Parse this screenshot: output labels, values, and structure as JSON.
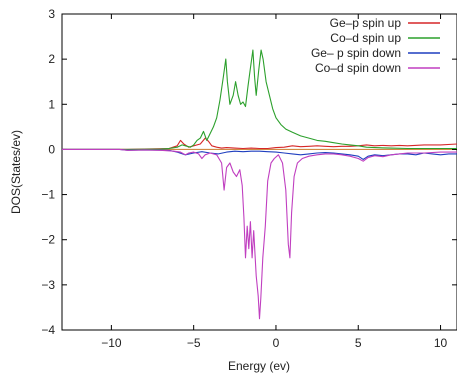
{
  "chart_data": {
    "type": "line",
    "title": "",
    "xlabel": "Energy (ev)",
    "ylabel": "DOS(States/ev)",
    "xlim": [
      -13,
      11
    ],
    "ylim": [
      -4,
      3
    ],
    "xticks": [
      -10,
      -5,
      0,
      5,
      10
    ],
    "yticks": [
      -4,
      -3,
      -2,
      -1,
      0,
      1,
      2,
      3
    ],
    "legend_position": "top-right",
    "grid": false,
    "series": [
      {
        "name": "Ge–p spin up",
        "color": "#d62728",
        "points": [
          [
            -13,
            0
          ],
          [
            -9,
            0
          ],
          [
            -8,
            0.01
          ],
          [
            -6.5,
            0.02
          ],
          [
            -6,
            0.08
          ],
          [
            -5.8,
            0.2
          ],
          [
            -5.6,
            0.12
          ],
          [
            -5.3,
            0.05
          ],
          [
            -5,
            0.08
          ],
          [
            -4.6,
            0.12
          ],
          [
            -4.3,
            0.25
          ],
          [
            -4.1,
            0.18
          ],
          [
            -3.9,
            0.08
          ],
          [
            -3.6,
            0.05
          ],
          [
            -3.3,
            0.03
          ],
          [
            -3,
            0.04
          ],
          [
            -2.5,
            0.03
          ],
          [
            -2,
            0.02
          ],
          [
            -1.5,
            0.03
          ],
          [
            -1,
            0.02
          ],
          [
            -0.5,
            0.02
          ],
          [
            0,
            0.04
          ],
          [
            0.5,
            0.05
          ],
          [
            1,
            0.08
          ],
          [
            1.5,
            0.06
          ],
          [
            2,
            0.07
          ],
          [
            2.5,
            0.08
          ],
          [
            3,
            0.07
          ],
          [
            3.5,
            0.06
          ],
          [
            4,
            0.07
          ],
          [
            4.5,
            0.07
          ],
          [
            5,
            0.08
          ],
          [
            5.5,
            0.1
          ],
          [
            6,
            0.08
          ],
          [
            6.5,
            0.09
          ],
          [
            7,
            0.08
          ],
          [
            7.5,
            0.09
          ],
          [
            8,
            0.08
          ],
          [
            9,
            0.1
          ],
          [
            10,
            0.1
          ],
          [
            11,
            0.12
          ]
        ]
      },
      {
        "name": "Co–d spin up",
        "color": "#2ca02c",
        "points": [
          [
            -13,
            0
          ],
          [
            -9,
            0
          ],
          [
            -7,
            0.01
          ],
          [
            -6.5,
            0.02
          ],
          [
            -6,
            0.05
          ],
          [
            -5.7,
            0.1
          ],
          [
            -5.5,
            0.08
          ],
          [
            -5.2,
            0.05
          ],
          [
            -5,
            0.1
          ],
          [
            -4.8,
            0.2
          ],
          [
            -4.6,
            0.25
          ],
          [
            -4.4,
            0.4
          ],
          [
            -4.2,
            0.2
          ],
          [
            -4,
            0.35
          ],
          [
            -3.8,
            0.5
          ],
          [
            -3.6,
            0.7
          ],
          [
            -3.4,
            1.1
          ],
          [
            -3.2,
            1.6
          ],
          [
            -3.05,
            2.0
          ],
          [
            -2.95,
            1.5
          ],
          [
            -2.8,
            1.0
          ],
          [
            -2.6,
            1.2
          ],
          [
            -2.45,
            1.5
          ],
          [
            -2.3,
            1.2
          ],
          [
            -2.15,
            1.0
          ],
          [
            -2.0,
            1.05
          ],
          [
            -1.85,
            0.95
          ],
          [
            -1.7,
            1.4
          ],
          [
            -1.55,
            1.8
          ],
          [
            -1.4,
            2.2
          ],
          [
            -1.3,
            1.6
          ],
          [
            -1.2,
            1.2
          ],
          [
            -1.05,
            1.75
          ],
          [
            -0.9,
            2.2
          ],
          [
            -0.78,
            2.0
          ],
          [
            -0.6,
            1.5
          ],
          [
            -0.4,
            1.2
          ],
          [
            -0.2,
            0.9
          ],
          [
            0,
            0.7
          ],
          [
            0.3,
            0.55
          ],
          [
            0.6,
            0.45
          ],
          [
            1,
            0.38
          ],
          [
            1.5,
            0.3
          ],
          [
            2,
            0.25
          ],
          [
            2.5,
            0.2
          ],
          [
            3,
            0.18
          ],
          [
            3.5,
            0.15
          ],
          [
            4,
            0.12
          ],
          [
            4.5,
            0.1
          ],
          [
            5,
            0.08
          ],
          [
            5.5,
            0.05
          ],
          [
            6,
            0.04
          ],
          [
            7,
            0.03
          ],
          [
            8,
            0.02
          ],
          [
            9,
            0.02
          ],
          [
            10,
            0.02
          ],
          [
            11,
            0.02
          ]
        ]
      },
      {
        "name": "Ge– p spin down",
        "color": "#1f3fbf",
        "points": [
          [
            -13,
            0
          ],
          [
            -9.5,
            0
          ],
          [
            -9,
            -0.02
          ],
          [
            -8,
            -0.01
          ],
          [
            -6.5,
            -0.02
          ],
          [
            -6,
            -0.06
          ],
          [
            -5.5,
            -0.12
          ],
          [
            -5,
            -0.08
          ],
          [
            -4.5,
            -0.05
          ],
          [
            -4,
            -0.08
          ],
          [
            -3.5,
            -0.1
          ],
          [
            -3,
            -0.06
          ],
          [
            -2.5,
            -0.04
          ],
          [
            -2,
            -0.05
          ],
          [
            -1.5,
            -0.04
          ],
          [
            -1,
            -0.04
          ],
          [
            -0.5,
            -0.05
          ],
          [
            0,
            -0.06
          ],
          [
            0.5,
            -0.08
          ],
          [
            1,
            -0.1
          ],
          [
            1.5,
            -0.12
          ],
          [
            2,
            -0.1
          ],
          [
            2.5,
            -0.08
          ],
          [
            3,
            -0.07
          ],
          [
            3.5,
            -0.08
          ],
          [
            4,
            -0.1
          ],
          [
            4.5,
            -0.12
          ],
          [
            5,
            -0.15
          ],
          [
            5.3,
            -0.22
          ],
          [
            5.6,
            -0.15
          ],
          [
            6,
            -0.12
          ],
          [
            6.5,
            -0.14
          ],
          [
            7,
            -0.12
          ],
          [
            7.5,
            -0.1
          ],
          [
            8,
            -0.1
          ],
          [
            8.5,
            -0.12
          ],
          [
            9,
            -0.08
          ],
          [
            9.5,
            -0.1
          ],
          [
            10,
            -0.12
          ],
          [
            10.5,
            -0.1
          ],
          [
            11,
            -0.1
          ]
        ]
      },
      {
        "name": "Co–d spin down",
        "color": "#c03fc0",
        "points": [
          [
            -13,
            0
          ],
          [
            -9.5,
            0
          ],
          [
            -9,
            -0.02
          ],
          [
            -8,
            -0.01
          ],
          [
            -7,
            -0.02
          ],
          [
            -6.2,
            -0.04
          ],
          [
            -5.8,
            -0.06
          ],
          [
            -5.5,
            -0.12
          ],
          [
            -5.3,
            -0.08
          ],
          [
            -5,
            -0.06
          ],
          [
            -4.7,
            -0.1
          ],
          [
            -4.5,
            -0.2
          ],
          [
            -4.3,
            -0.12
          ],
          [
            -4,
            -0.08
          ],
          [
            -3.6,
            -0.12
          ],
          [
            -3.3,
            -0.3
          ],
          [
            -3.15,
            -0.9
          ],
          [
            -3.0,
            -0.4
          ],
          [
            -2.8,
            -0.3
          ],
          [
            -2.6,
            -0.5
          ],
          [
            -2.4,
            -0.6
          ],
          [
            -2.2,
            -0.45
          ],
          [
            -2.05,
            -0.8
          ],
          [
            -1.95,
            -1.5
          ],
          [
            -1.85,
            -2.4
          ],
          [
            -1.75,
            -1.7
          ],
          [
            -1.65,
            -2.2
          ],
          [
            -1.55,
            -1.6
          ],
          [
            -1.45,
            -2.4
          ],
          [
            -1.35,
            -1.8
          ],
          [
            -1.2,
            -2.8
          ],
          [
            -1.08,
            -3.25
          ],
          [
            -1.0,
            -3.75
          ],
          [
            -0.92,
            -3.3
          ],
          [
            -0.8,
            -2.4
          ],
          [
            -0.65,
            -1.7
          ],
          [
            -0.5,
            -0.7
          ],
          [
            -0.3,
            -0.3
          ],
          [
            -0.1,
            -0.2
          ],
          [
            0.15,
            -0.12
          ],
          [
            0.4,
            -0.3
          ],
          [
            0.6,
            -0.9
          ],
          [
            0.75,
            -2.1
          ],
          [
            0.85,
            -2.4
          ],
          [
            0.95,
            -1.4
          ],
          [
            1.1,
            -0.6
          ],
          [
            1.3,
            -0.3
          ],
          [
            1.6,
            -0.2
          ],
          [
            2,
            -0.15
          ],
          [
            2.5,
            -0.12
          ],
          [
            3,
            -0.1
          ],
          [
            3.5,
            -0.1
          ],
          [
            4,
            -0.12
          ],
          [
            4.5,
            -0.15
          ],
          [
            5,
            -0.2
          ],
          [
            5.3,
            -0.26
          ],
          [
            5.6,
            -0.18
          ],
          [
            6,
            -0.14
          ],
          [
            6.5,
            -0.16
          ],
          [
            7,
            -0.12
          ],
          [
            7.5,
            -0.1
          ],
          [
            8,
            -0.08
          ],
          [
            9,
            -0.08
          ],
          [
            10,
            -0.06
          ],
          [
            11,
            -0.06
          ]
        ]
      }
    ]
  }
}
